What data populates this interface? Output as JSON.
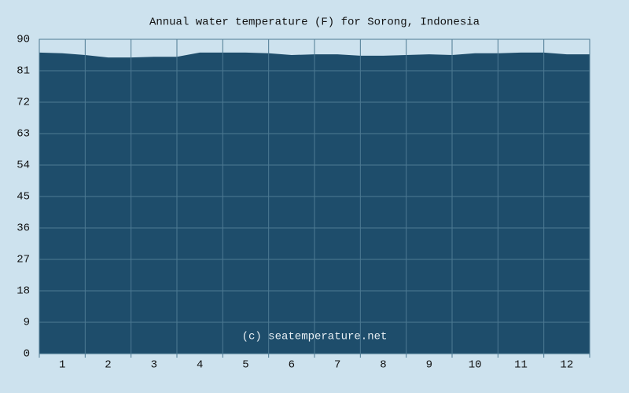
{
  "chart_data": {
    "type": "area",
    "title": "Annual water temperature (F) for Sorong, Indonesia",
    "annotation": "(c) seatemperature.net",
    "x": [
      0.5,
      1,
      1.5,
      2,
      2.5,
      3,
      3.5,
      4,
      4.5,
      5,
      5.5,
      6,
      6.5,
      7,
      7.5,
      8,
      8.5,
      9,
      9.5,
      10,
      10.5,
      11,
      11.5,
      12,
      12.5
    ],
    "values": [
      86.2,
      86.0,
      85.5,
      84.8,
      84.8,
      85.0,
      85.0,
      86.2,
      86.2,
      86.2,
      86.0,
      85.5,
      85.7,
      85.7,
      85.3,
      85.3,
      85.5,
      85.7,
      85.5,
      86.0,
      86.0,
      86.2,
      86.2,
      85.7,
      85.7
    ],
    "color": "#1e4d6b",
    "xlim": [
      0.5,
      12.5
    ],
    "xticks": [
      1,
      2,
      3,
      4,
      5,
      6,
      7,
      8,
      9,
      10,
      11,
      12
    ],
    "ylim": [
      0,
      90
    ],
    "yticks": [
      0,
      9,
      18,
      27,
      36,
      45,
      54,
      63,
      72,
      81,
      90
    ],
    "grid": true
  }
}
